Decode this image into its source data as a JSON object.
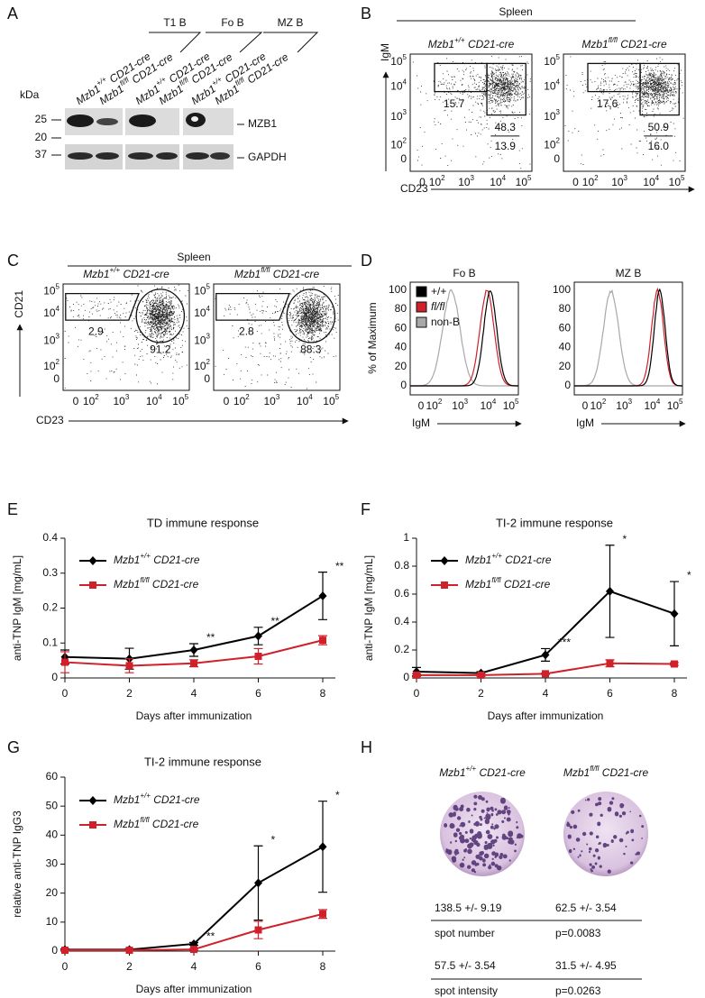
{
  "panel_a": {
    "letter": "A",
    "groups": [
      "T1 B",
      "Fo B",
      "MZ B"
    ],
    "lanes": [
      "Mzb1+/+ CD21-cre",
      "Mzb1fl/fl CD21-cre",
      "Mzb1+/+ CD21-cre",
      "Mzb1fl/fl CD21-cre",
      "Mzb1+/+ CD21-cre",
      "Mzb1fl/fl CD21-cre"
    ],
    "kda_label": "kDa",
    "kda": [
      "25",
      "20",
      "37"
    ],
    "bands": [
      "MZB1",
      "GAPDH"
    ]
  },
  "panel_b": {
    "letter": "B",
    "title": "Spleen",
    "ylabel": "IgM",
    "xlabel": "CD23",
    "ticks": [
      [
        "0"
      ],
      [
        "10",
        "2"
      ],
      [
        "10",
        "3"
      ],
      [
        "10",
        "4"
      ],
      [
        "10",
        "5"
      ]
    ],
    "plots": [
      {
        "title": "Mzb1+/+ CD21-cre",
        "gates": [
          "15.7",
          "48.3",
          "13.9"
        ]
      },
      {
        "title": "Mzb1fl/fl CD21-cre",
        "gates": [
          "17.6",
          "50.9",
          "16.0"
        ]
      }
    ]
  },
  "panel_c": {
    "letter": "C",
    "title": "Spleen",
    "ylabel": "CD21",
    "xlabel": "CD23",
    "ticks": [
      [
        "0"
      ],
      [
        "10",
        "2"
      ],
      [
        "10",
        "3"
      ],
      [
        "10",
        "4"
      ],
      [
        "10",
        "5"
      ]
    ],
    "plots": [
      {
        "title": "Mzb1+/+ CD21-cre",
        "gates": [
          "2.9",
          "91.2"
        ]
      },
      {
        "title": "Mzb1fl/fl CD21-cre",
        "gates": [
          "2.8",
          "88.3"
        ]
      }
    ]
  },
  "panel_d": {
    "letter": "D",
    "ylabel": "% of Maximum",
    "xlabel": "IgM",
    "yticks": [
      "0",
      "20",
      "40",
      "60",
      "80",
      "100"
    ],
    "xticks": [
      [
        "0"
      ],
      [
        "10",
        "2"
      ],
      [
        "10",
        "3"
      ],
      [
        "10",
        "4"
      ],
      [
        "10",
        "5"
      ]
    ],
    "legend": [
      {
        "label": "+/+",
        "color": "#000000"
      },
      {
        "label": "fl/fl",
        "color": "#d0202a"
      },
      {
        "label": "non-B",
        "color": "#a8a8a8"
      }
    ],
    "plots": [
      {
        "title": "Fo B"
      },
      {
        "title": "MZ B"
      }
    ]
  },
  "chart_data": [
    {
      "letter": "E",
      "type": "line",
      "title": "TD immune response",
      "xlabel": "Days after immunization",
      "ylabel": "anti-TNP IgM [mg/mL]",
      "x": [
        0,
        2,
        4,
        6,
        8
      ],
      "xlim": [
        0,
        8
      ],
      "xticks": [
        0,
        2,
        4,
        6,
        8
      ],
      "ylim": [
        0,
        0.4
      ],
      "yticks": [
        0,
        0.1,
        0.2,
        0.3,
        0.4
      ],
      "series": [
        {
          "name": "Mzb1+/+ CD21-cre",
          "color": "#000000",
          "marker": "diamond",
          "values": [
            0.06,
            0.055,
            0.08,
            0.12,
            0.235
          ],
          "errors": [
            0.02,
            0.03,
            0.018,
            0.025,
            0.068
          ]
        },
        {
          "name": "Mzb1fl/fl CD21-cre",
          "color": "#d0202a",
          "marker": "square",
          "values": [
            0.045,
            0.035,
            0.042,
            0.062,
            0.108
          ],
          "errors": [
            0.03,
            0.02,
            0.01,
            0.022,
            0.013
          ]
        }
      ],
      "annotations": [
        {
          "x": 4,
          "text": "**"
        },
        {
          "x": 6,
          "text": "**"
        },
        {
          "x": 8,
          "text": "**"
        }
      ]
    },
    {
      "letter": "F",
      "type": "line",
      "title": "TI-2 immune response",
      "xlabel": "Days after immunization",
      "ylabel": "anti-TNP IgM [mg/mL]",
      "x": [
        0,
        2,
        4,
        6,
        8
      ],
      "xlim": [
        0,
        8
      ],
      "xticks": [
        0,
        2,
        4,
        6,
        8
      ],
      "ylim": [
        0,
        1
      ],
      "yticks": [
        0,
        0.2,
        0.4,
        0.6,
        0.8,
        1
      ],
      "series": [
        {
          "name": "Mzb1+/+ CD21-cre",
          "color": "#000000",
          "marker": "diamond",
          "values": [
            0.045,
            0.035,
            0.165,
            0.62,
            0.46
          ],
          "errors": [
            0.03,
            0.01,
            0.045,
            0.33,
            0.23
          ]
        },
        {
          "name": "Mzb1fl/fl CD21-cre",
          "color": "#d0202a",
          "marker": "square",
          "values": [
            0.02,
            0.02,
            0.03,
            0.105,
            0.1
          ],
          "errors": [
            0.01,
            0.01,
            0.005,
            0.025,
            0.01
          ]
        }
      ],
      "annotations": [
        {
          "x": 4,
          "text": "***"
        },
        {
          "x": 6,
          "text": "*"
        },
        {
          "x": 8,
          "text": "*"
        }
      ]
    },
    {
      "letter": "G",
      "type": "line",
      "title": "TI-2 immune response",
      "xlabel": "Days after immunization",
      "ylabel": "relative anti-TNP IgG3",
      "x": [
        0,
        2,
        4,
        6,
        8
      ],
      "xlim": [
        0,
        8
      ],
      "xticks": [
        0,
        2,
        4,
        6,
        8
      ],
      "ylim": [
        0,
        60
      ],
      "yticks": [
        0,
        10,
        20,
        30,
        40,
        50,
        60
      ],
      "series": [
        {
          "name": "Mzb1+/+ CD21-cre",
          "color": "#000000",
          "marker": "diamond",
          "values": [
            0.5,
            0.5,
            2.5,
            23.5,
            36
          ],
          "errors": [
            0.3,
            0.3,
            0.5,
            12.8,
            15.7
          ]
        },
        {
          "name": "Mzb1fl/fl CD21-cre",
          "color": "#d0202a",
          "marker": "square",
          "values": [
            0.3,
            0.3,
            0.6,
            7.3,
            12.8
          ],
          "errors": [
            0.2,
            0.2,
            0.3,
            3,
            1.5
          ]
        }
      ],
      "annotations": [
        {
          "x": 4,
          "text": "**"
        },
        {
          "x": 6,
          "text": "*"
        },
        {
          "x": 8,
          "text": "*"
        }
      ]
    }
  ],
  "panel_h": {
    "letter": "H",
    "columns": [
      "Mzb1+/+ CD21-cre",
      "Mzb1fl/fl CD21-cre"
    ],
    "table": {
      "rows": [
        [
          "138.5 +/- 9.19",
          "62.5 +/- 3.54"
        ],
        [
          "spot number",
          "p=0.0083"
        ],
        [
          "57.5 +/- 3.54",
          "31.5 +/- 4.95"
        ],
        [
          "spot intensity",
          "p=0.0263"
        ]
      ]
    }
  }
}
